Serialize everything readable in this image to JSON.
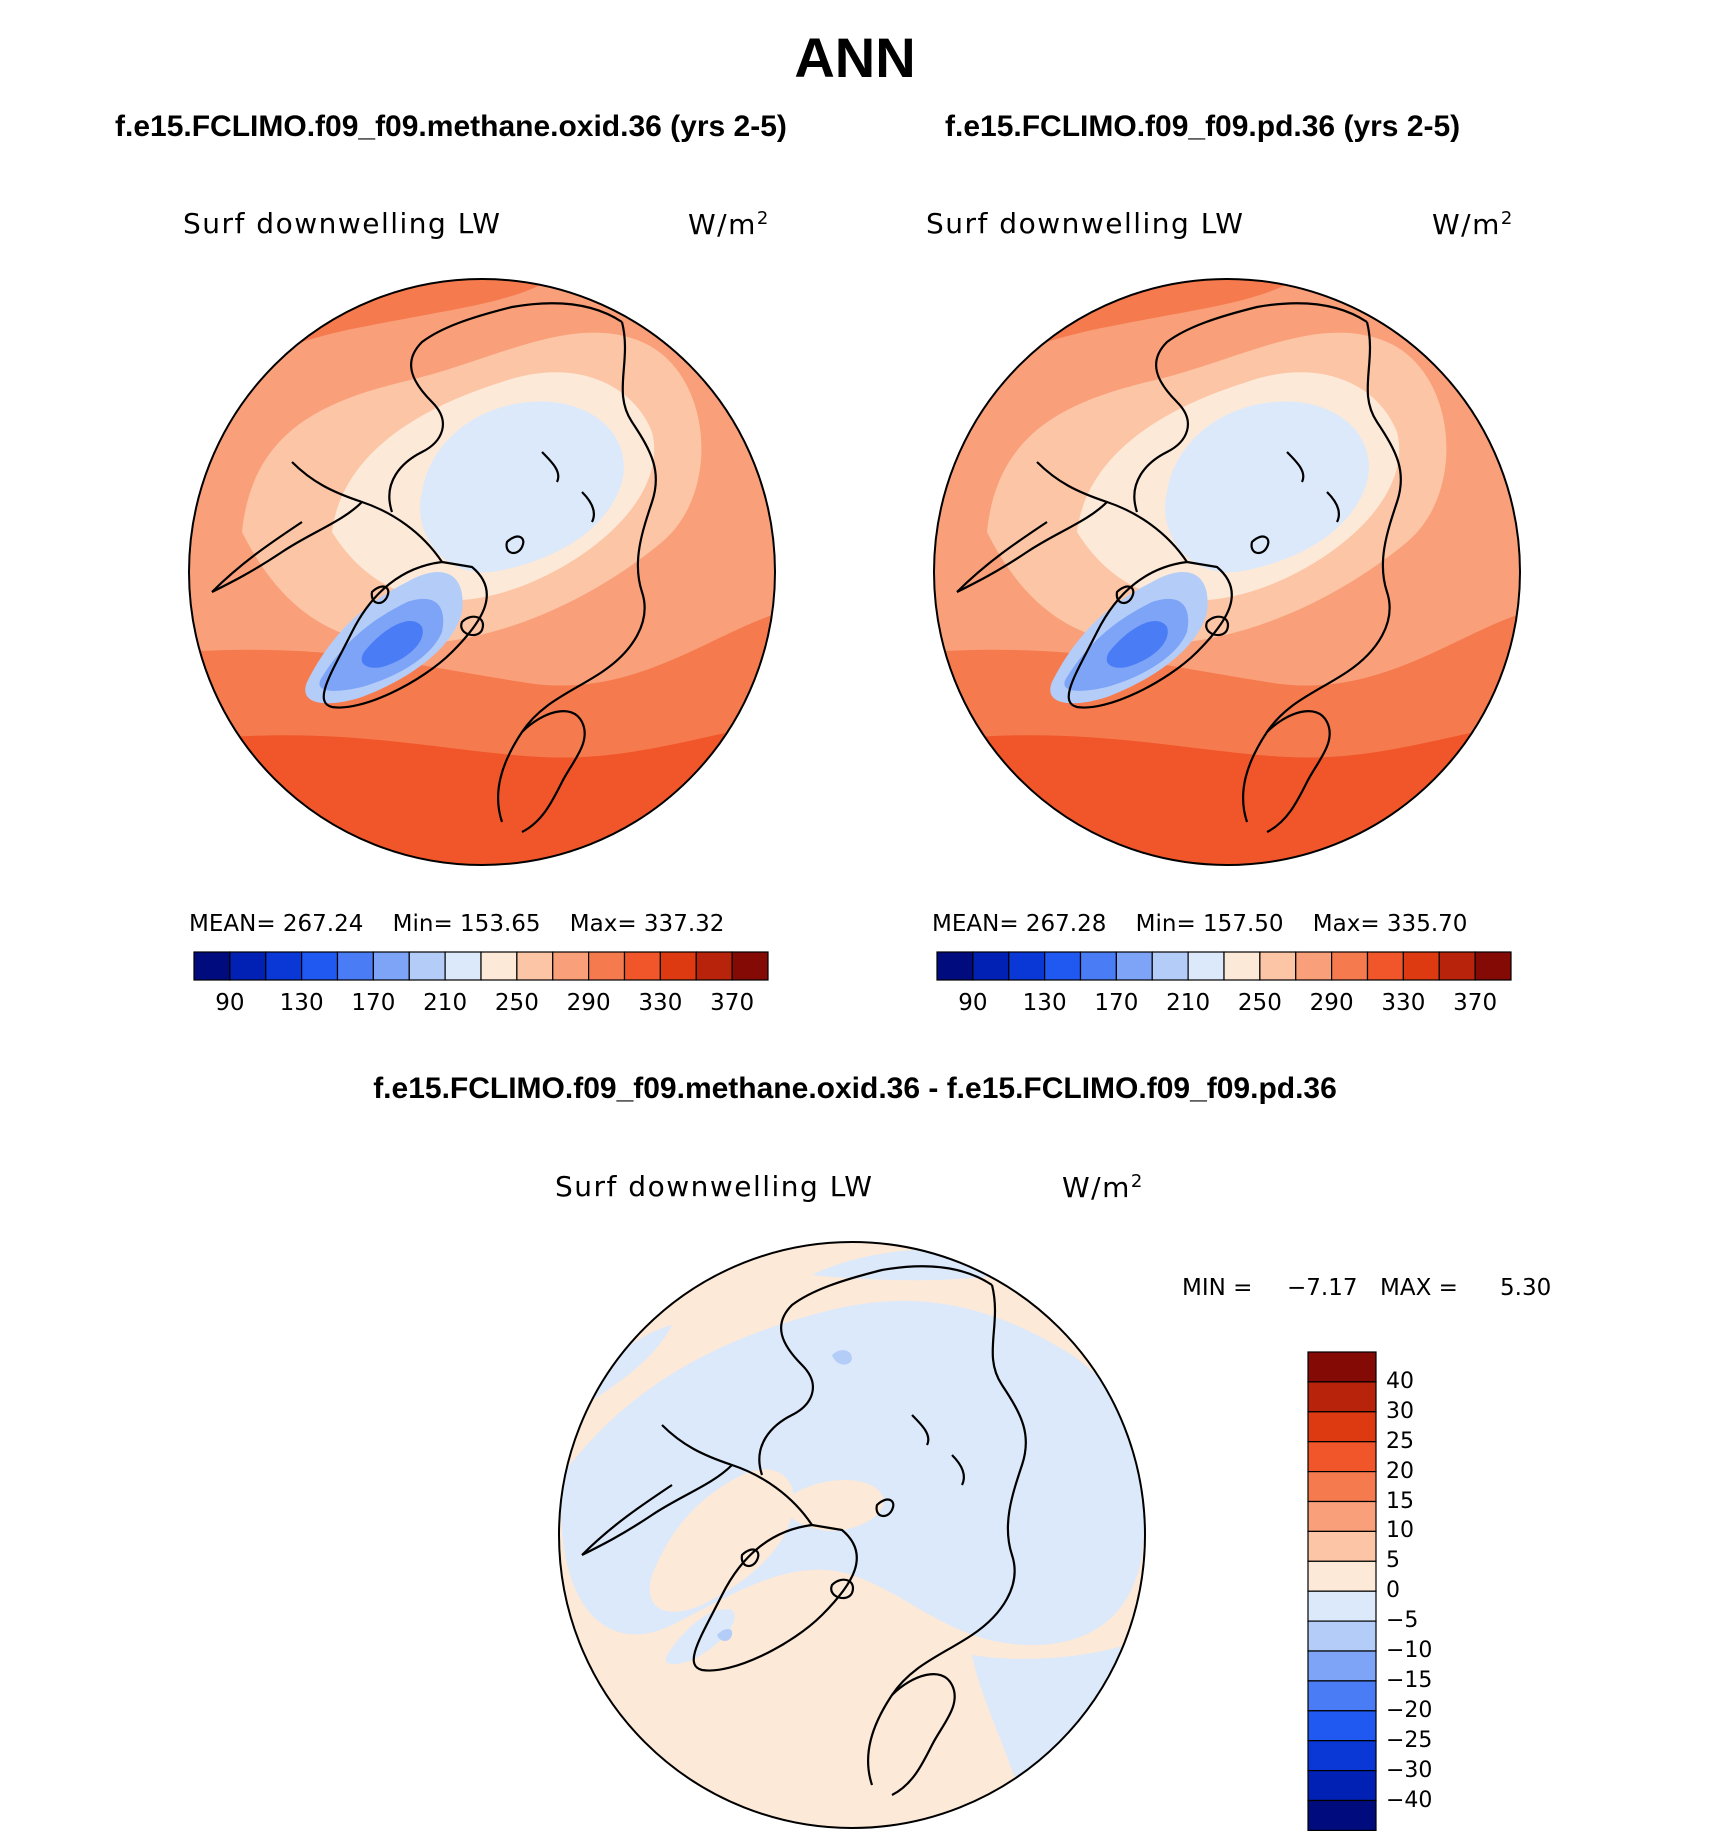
{
  "chart_data": {
    "type": "contour-map",
    "title": "ANN",
    "panels": [
      {
        "case": "f.e15.FCLIMO.f09_f09.methane.oxid.36 (yrs 2-5)",
        "variable": "Surf downwelling LW",
        "units_base": "W/m",
        "units_exp": "2",
        "mean_label": "MEAN=",
        "mean": "267.24",
        "min_label": "Min=",
        "min": "153.65",
        "max_label": "Max=",
        "max": "337.32",
        "projection": "north polar stereographic"
      },
      {
        "case": "f.e15.FCLIMO.f09_f09.pd.36 (yrs 2-5)",
        "variable": "Surf downwelling LW",
        "units_base": "W/m",
        "units_exp": "2",
        "mean_label": "MEAN=",
        "mean": "267.28",
        "min_label": "Min=",
        "min": "157.50",
        "max_label": "Max=",
        "max": "335.70",
        "projection": "north polar stereographic"
      }
    ],
    "colorbar": {
      "orientation": "horizontal",
      "colors": [
        "#000c7d",
        "#0021b3",
        "#0a38d6",
        "#2058f2",
        "#4a7cf5",
        "#7ea4f7",
        "#b4cdf8",
        "#dbe9fb",
        "#fde9d8",
        "#fcc6a6",
        "#f9a07a",
        "#f57b4f",
        "#f0562a",
        "#dd3a12",
        "#b7240b",
        "#840a06"
      ],
      "tick_labels": [
        "90",
        "130",
        "170",
        "210",
        "250",
        "290",
        "330",
        "370"
      ]
    },
    "difference": {
      "title": "f.e15.FCLIMO.f09_f09.methane.oxid.36 - f.e15.FCLIMO.f09_f09.pd.36",
      "variable": "Surf downwelling LW",
      "units_base": "W/m",
      "units_exp": "2",
      "min_label": "MIN =",
      "min": "-7.17",
      "min_display": "−7.17",
      "max_label": "MAX =",
      "max": "5.30",
      "colorbar": {
        "orientation": "vertical",
        "levels": [
          40,
          30,
          25,
          20,
          15,
          10,
          5,
          0,
          -5,
          -10,
          -15,
          -20,
          -25,
          -30,
          -40
        ],
        "tick_labels": [
          "40",
          "30",
          "25",
          "20",
          "15",
          "10",
          "5",
          "0",
          "−5",
          "−10",
          "−15",
          "−20",
          "−25",
          "−30",
          "−40"
        ],
        "colors": [
          "#840a06",
          "#b7240b",
          "#dd3a12",
          "#f0562a",
          "#f57b4f",
          "#f9a07a",
          "#fcc6a6",
          "#fde9d8",
          "#dbe9fb",
          "#b4cdf8",
          "#7ea4f7",
          "#4a7cf5",
          "#2058f2",
          "#0a38d6",
          "#0021b3",
          "#000c7d"
        ]
      }
    }
  }
}
